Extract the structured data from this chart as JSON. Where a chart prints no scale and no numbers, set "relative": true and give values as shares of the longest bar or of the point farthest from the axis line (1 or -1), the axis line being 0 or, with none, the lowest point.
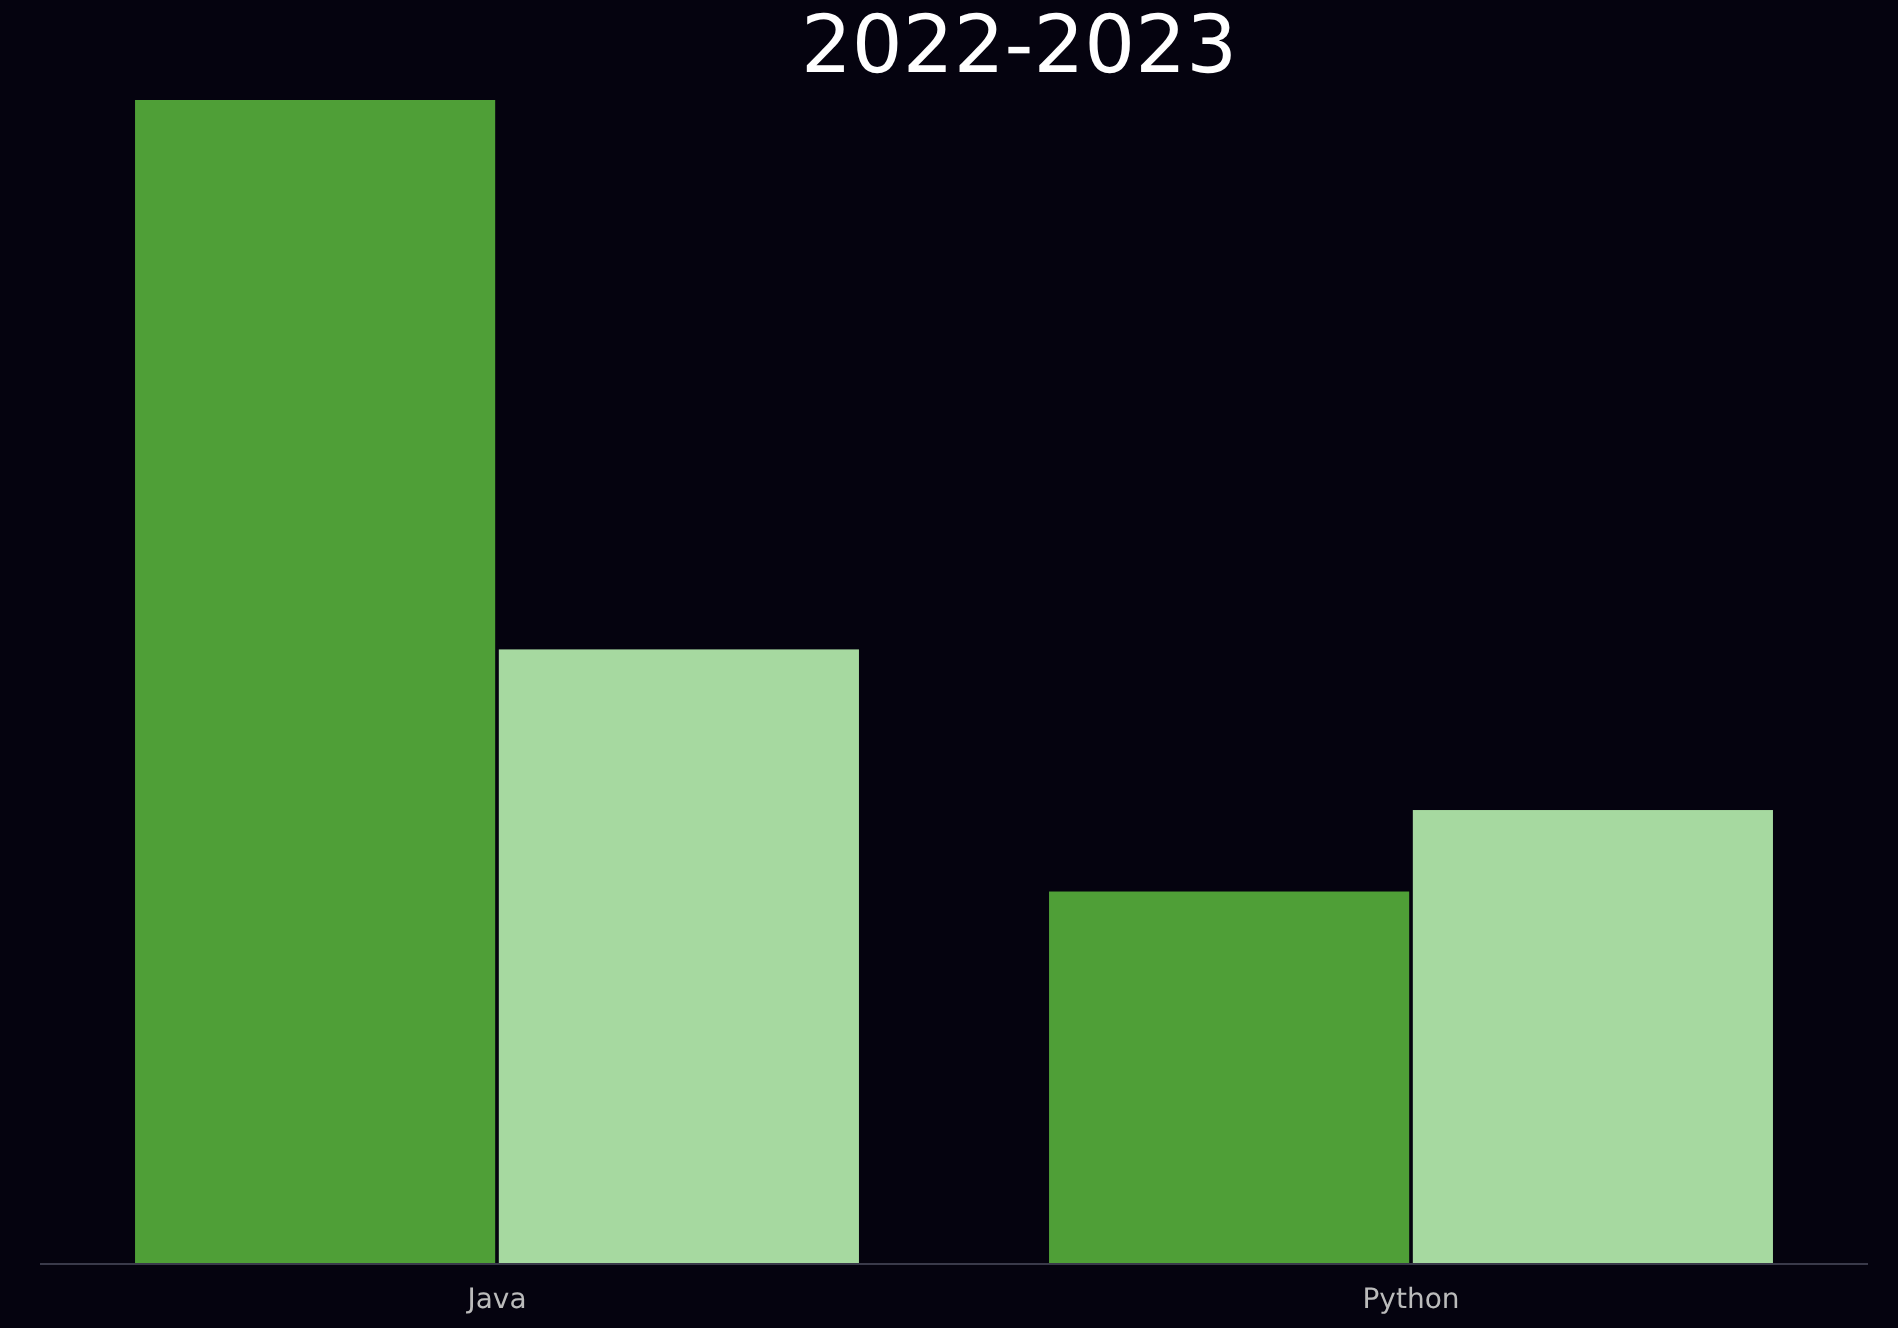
{
  "chart_data": {
    "type": "bar",
    "title": "2022-2023",
    "categories": [
      "Java",
      "Python"
    ],
    "relative": true,
    "series": [
      {
        "color": "#4f9f37",
        "values": [
          1,
          0.32
        ]
      },
      {
        "color": "#a6d9a0",
        "values": [
          0.528,
          0.39
        ]
      }
    ]
  }
}
